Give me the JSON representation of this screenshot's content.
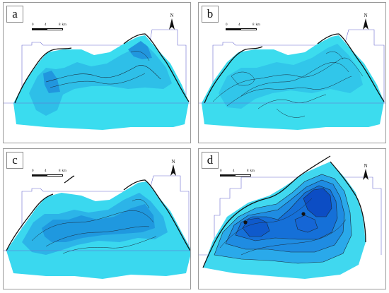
{
  "figure": {
    "panels": [
      {
        "id": "a",
        "label": "a",
        "scale": {
          "ticks": [
            "0",
            "4",
            "8"
          ],
          "unit": "km"
        },
        "north": "N",
        "colors": {
          "light": "#39dbee",
          "mid": "#2bb8e8",
          "deep": "#1c8fdc"
        }
      },
      {
        "id": "b",
        "label": "b",
        "scale": {
          "ticks": [
            "0",
            "4",
            "8"
          ],
          "unit": "km"
        },
        "north": "N",
        "colors": {
          "light": "#3bdcee",
          "mid": "#2fc3ea",
          "deep": "#1f9ee0"
        }
      },
      {
        "id": "c",
        "label": "c",
        "scale": {
          "ticks": [
            "0",
            "4",
            "8"
          ],
          "unit": "km"
        },
        "north": "N",
        "colors": {
          "light": "#3ad8ef",
          "mid": "#2ab1e8",
          "deep": "#1a84d6"
        }
      },
      {
        "id": "d",
        "label": "d",
        "scale": {
          "ticks": [
            "0",
            "4",
            "8"
          ],
          "unit": "km"
        },
        "north": "N",
        "colors": {
          "light": "#40d9ef",
          "mid": "#1f8fe0",
          "deep": "#0b4ccc"
        }
      }
    ]
  },
  "icons": {
    "north_arrow": "north-arrow-icon",
    "station": "station-marker-icon"
  }
}
